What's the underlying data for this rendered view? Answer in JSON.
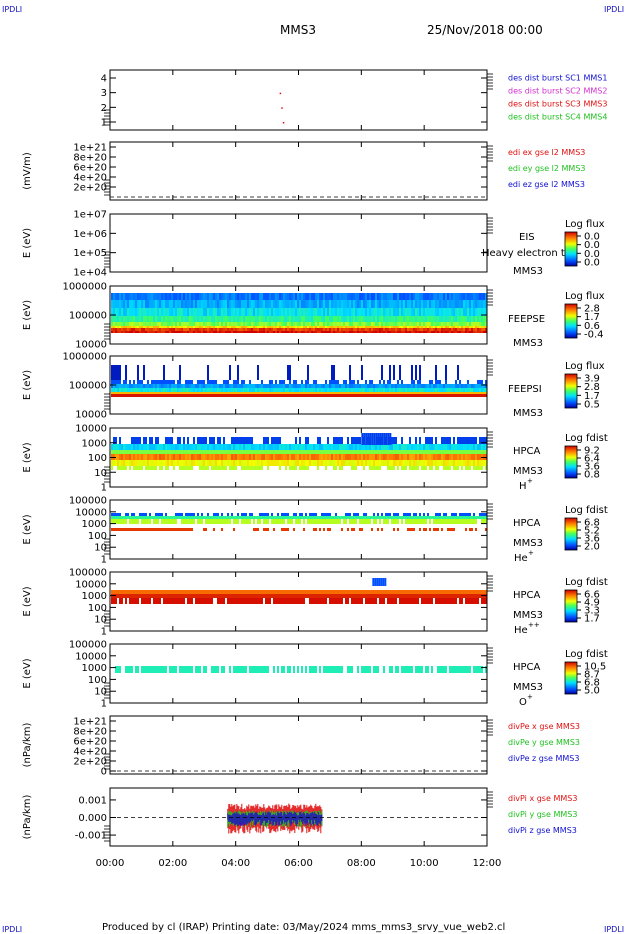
{
  "header": {
    "corner_tl": "IPDLI",
    "corner_tr": "IPDLI",
    "corner_bl": "IPDLI",
    "corner_br": "IPDLI",
    "spacecraft": "MMS3",
    "datetime": "25/Nov/2018 00:00"
  },
  "footer": {
    "text": "Produced by cl (IRAP)   Printing date: 03/May/2024   mms_mms3_srvy_vue_web2.cl"
  },
  "chart_data": {
    "type": "spectrogram_stack",
    "x_ticks": [
      "00:00",
      "02:00",
      "04:00",
      "06:00",
      "08:00",
      "10:00",
      "12:00"
    ],
    "x_range_hours": [
      0,
      12
    ],
    "panels": [
      {
        "id": "burst",
        "type": "scatter",
        "ylabel": "",
        "yticks": [
          "1",
          "2",
          "3",
          "4"
        ],
        "legend": [
          {
            "text": "des dist burst SC1 MMS1",
            "color": "#1010d0"
          },
          {
            "text": "des dist burst SC2 MMS2",
            "color": "#d030d0"
          },
          {
            "text": "des dist burst SC3 MMS3",
            "color": "#e01010"
          },
          {
            "text": "des dist burst SC4 MMS4",
            "color": "#20c020"
          }
        ],
        "points": [
          {
            "x": 5.4,
            "y": 3
          },
          {
            "x": 5.45,
            "y": 2
          },
          {
            "x": 5.5,
            "y": 1
          }
        ]
      },
      {
        "id": "edi",
        "type": "line",
        "ylabel": "(mV/m)",
        "yticks": [
          "2e+20",
          "4e+20",
          "6e+20",
          "8e+20",
          "1e+21"
        ],
        "legend": [
          {
            "text": "edi ex gse l2 MMS3",
            "color": "#e01010"
          },
          {
            "text": "edi ey gse l2 MMS3",
            "color": "#20c020"
          },
          {
            "text": "edi ez gse l2 MMS3",
            "color": "#1010d0"
          }
        ]
      },
      {
        "id": "eis",
        "type": "heatmap",
        "ylabel": "E (eV)",
        "yticks": [
          "1e+04",
          "1e+05",
          "1e+06",
          "1e+07"
        ],
        "instrument": "EIS",
        "spacecraft": "MMS3",
        "overlay_text": "Heavy electron to",
        "cbar_title": "Log flux",
        "cbar_ticks": [
          "0.0",
          "0.0",
          "0.0",
          "0.0"
        ]
      },
      {
        "id": "feepse",
        "type": "heatmap",
        "ylabel": "E (eV)",
        "yticks": [
          "10000",
          "100000",
          "1000000"
        ],
        "instrument": "FEEPSE",
        "spacecraft": "MMS3",
        "cbar_title": "Log flux",
        "cbar_ticks": [
          "2.8",
          "1.7",
          "0.6",
          "-0.4"
        ]
      },
      {
        "id": "feepsi",
        "type": "heatmap",
        "ylabel": "E (eV)",
        "yticks": [
          "10000",
          "100000",
          "1000000"
        ],
        "instrument": "FEEPSI",
        "spacecraft": "MMS3",
        "cbar_title": "Log flux",
        "cbar_ticks": [
          "3.9",
          "2.8",
          "1.7",
          "0.5"
        ]
      },
      {
        "id": "hpca_h",
        "type": "heatmap",
        "ylabel": "E (eV)",
        "yticks": [
          "1",
          "10",
          "100",
          "1000",
          "10000"
        ],
        "instrument": "HPCA",
        "spacecraft": "MMS3",
        "species": "H",
        "species_sup": "+",
        "cbar_title": "Log fdist",
        "cbar_ticks": [
          "9.2",
          "6.4",
          "3.6",
          "0.8"
        ]
      },
      {
        "id": "hpca_he",
        "type": "heatmap",
        "ylabel": "E (eV)",
        "yticks": [
          "1",
          "10",
          "100",
          "1000",
          "10000",
          "100000"
        ],
        "instrument": "HPCA",
        "spacecraft": "MMS3",
        "species": "He",
        "species_sup": "+",
        "cbar_title": "Log fdist",
        "cbar_ticks": [
          "6.8",
          "5.2",
          "3.6",
          "2.0"
        ]
      },
      {
        "id": "hpca_hepp",
        "type": "heatmap",
        "ylabel": "E (eV)",
        "yticks": [
          "1",
          "10",
          "100",
          "1000",
          "10000",
          "100000"
        ],
        "instrument": "HPCA",
        "spacecraft": "MMS3",
        "species": "He",
        "species_sup": "++",
        "cbar_title": "Log fdist",
        "cbar_ticks": [
          "6.6",
          "4.9",
          "3.3",
          "1.7"
        ]
      },
      {
        "id": "hpca_o",
        "type": "heatmap",
        "ylabel": "E (eV)",
        "yticks": [
          "1",
          "10",
          "100",
          "1000",
          "10000",
          "100000"
        ],
        "instrument": "HPCA",
        "spacecraft": "MMS3",
        "species": "O",
        "species_sup": "+",
        "cbar_title": "Log fdist",
        "cbar_ticks": [
          "10.5",
          "8.7",
          "6.8",
          "5.0"
        ]
      },
      {
        "id": "divpe",
        "type": "line",
        "ylabel": "(nPa/km)",
        "yticks": [
          "0",
          "2e+20",
          "4e+20",
          "6e+20",
          "8e+20",
          "1e+21"
        ],
        "legend": [
          {
            "text": "divPe x gse MMS3",
            "color": "#e01010"
          },
          {
            "text": "divPe y gse MMS3",
            "color": "#20c020"
          },
          {
            "text": "divPe z gse MMS3",
            "color": "#1010d0"
          }
        ]
      },
      {
        "id": "divpi",
        "type": "line",
        "ylabel": "(nPa/km)",
        "yticks": [
          "-0.001",
          "0.000",
          "0.001"
        ],
        "legend": [
          {
            "text": "divPi x gse MMS3",
            "color": "#e01010"
          },
          {
            "text": "divPi y gse MMS3",
            "color": "#20c020"
          },
          {
            "text": "divPi z gse MMS3",
            "color": "#1010d0"
          }
        ],
        "data_window_hours": [
          3.75,
          6.75
        ]
      }
    ]
  }
}
